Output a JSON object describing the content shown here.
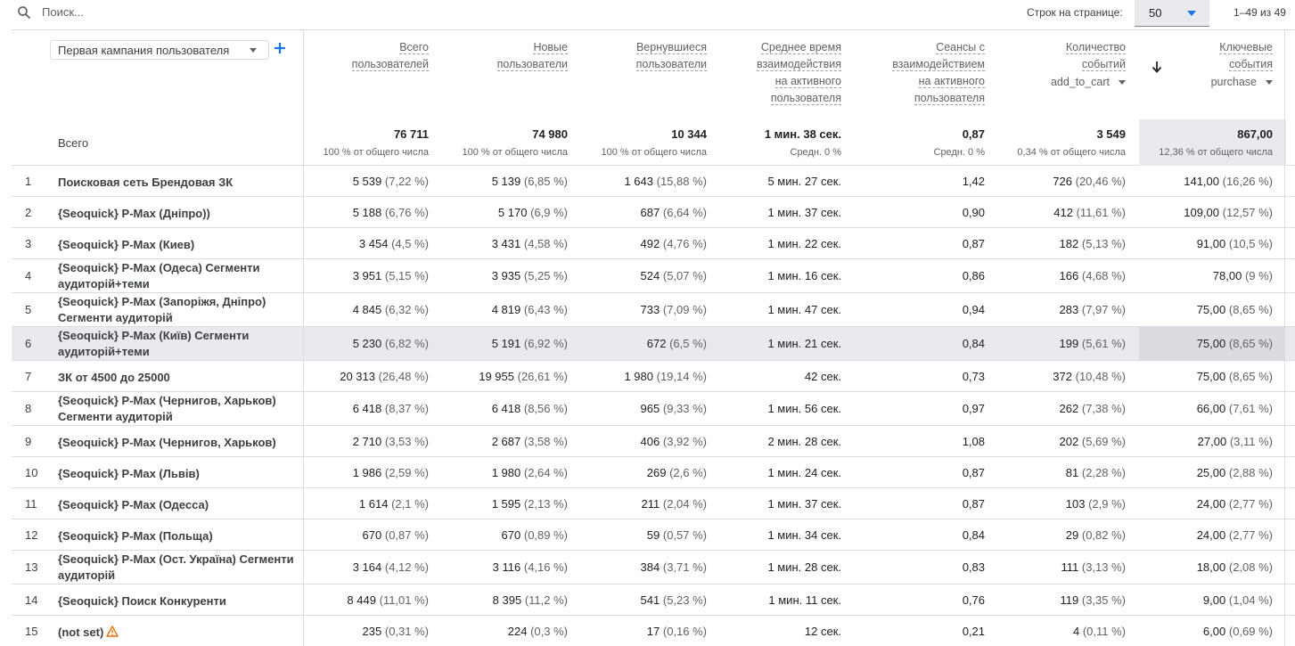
{
  "search": {
    "placeholder": "Поиск..."
  },
  "pagination": {
    "rows_label": "Строк на странице:",
    "rows_value": "50",
    "range": "1–49 из 49"
  },
  "dimension": {
    "label": "Первая кампания пользователя"
  },
  "total_label": "Всего",
  "columns": [
    {
      "lines": [
        "Всего",
        "пользователей"
      ],
      "total": "76 711",
      "pct": "100 % от общего числа"
    },
    {
      "lines": [
        "Новые",
        "пользователи"
      ],
      "total": "74 980",
      "pct": "100 % от общего числа"
    },
    {
      "lines": [
        "Вернувшиеся",
        "пользователи"
      ],
      "total": "10 344",
      "pct": "100 % от общего числа"
    },
    {
      "lines": [
        "Среднее время",
        "взаимодействия",
        "на активного",
        "пользователя"
      ],
      "total": "1 мин. 38 сек.",
      "pct": "Средн. 0 %"
    },
    {
      "lines": [
        "Сеансы с",
        "взаимодействием",
        "на активного",
        "пользователя"
      ],
      "total": "0,87",
      "pct": "Средн. 0 %"
    },
    {
      "lines": [
        "Количество",
        "событий"
      ],
      "event": "add_to_cart",
      "total": "3 549",
      "pct": "0,34 % от общего числа"
    },
    {
      "lines": [
        "Ключевые",
        "события"
      ],
      "event": "purchase",
      "total": "867,00",
      "pct": "12,36 % от общего числа"
    }
  ],
  "rows": [
    {
      "idx": "1",
      "name": "Поисковая сеть Брендовая ЗК",
      "c": [
        [
          "5 539",
          "(7,22 %)"
        ],
        [
          "5 139",
          "(6,85 %)"
        ],
        [
          "1 643",
          "(15,88 %)"
        ],
        [
          "5 мин. 27 сек.",
          ""
        ],
        [
          "1,42",
          ""
        ],
        [
          "726",
          "(20,46 %)"
        ],
        [
          "141,00",
          "(16,26 %)"
        ]
      ]
    },
    {
      "idx": "2",
      "name": "{Seoquick} P-Max (Дніпро))",
      "c": [
        [
          "5 188",
          "(6,76 %)"
        ],
        [
          "5 170",
          "(6,9 %)"
        ],
        [
          "687",
          "(6,64 %)"
        ],
        [
          "1 мин. 37 сек.",
          ""
        ],
        [
          "0,90",
          ""
        ],
        [
          "412",
          "(11,61 %)"
        ],
        [
          "109,00",
          "(12,57 %)"
        ]
      ]
    },
    {
      "idx": "3",
      "name": "{Seoquick} P-Max (Киев)",
      "c": [
        [
          "3 454",
          "(4,5 %)"
        ],
        [
          "3 431",
          "(4,58 %)"
        ],
        [
          "492",
          "(4,76 %)"
        ],
        [
          "1 мин. 22 сек.",
          ""
        ],
        [
          "0,87",
          ""
        ],
        [
          "182",
          "(5,13 %)"
        ],
        [
          "91,00",
          "(10,5 %)"
        ]
      ]
    },
    {
      "idx": "4",
      "name": "{Seoquick} P-Max (Одеса) Сегменти аудиторій+теми",
      "c": [
        [
          "3 951",
          "(5,15 %)"
        ],
        [
          "3 935",
          "(5,25 %)"
        ],
        [
          "524",
          "(5,07 %)"
        ],
        [
          "1 мин. 16 сек.",
          ""
        ],
        [
          "0,86",
          ""
        ],
        [
          "166",
          "(4,68 %)"
        ],
        [
          "78,00",
          "(9 %)"
        ]
      ]
    },
    {
      "idx": "5",
      "name": "{Seoquick} P-Max (Запоріжя, Дніпро) Сегменти аудиторій",
      "c": [
        [
          "4 845",
          "(6,32 %)"
        ],
        [
          "4 819",
          "(6,43 %)"
        ],
        [
          "733",
          "(7,09 %)"
        ],
        [
          "1 мин. 47 сек.",
          ""
        ],
        [
          "0,94",
          ""
        ],
        [
          "283",
          "(7,97 %)"
        ],
        [
          "75,00",
          "(8,65 %)"
        ]
      ]
    },
    {
      "idx": "6",
      "name": "{Seoquick} P-Max (Київ) Сегменти аудиторій+теми",
      "c": [
        [
          "5 230",
          "(6,82 %)"
        ],
        [
          "5 191",
          "(6,92 %)"
        ],
        [
          "672",
          "(6,5 %)"
        ],
        [
          "1 мин. 21 сек.",
          ""
        ],
        [
          "0,84",
          ""
        ],
        [
          "199",
          "(5,61 %)"
        ],
        [
          "75,00",
          "(8,65 %)"
        ]
      ]
    },
    {
      "idx": "7",
      "name": "ЗК от 4500 до 25000",
      "c": [
        [
          "20 313",
          "(26,48 %)"
        ],
        [
          "19 955",
          "(26,61 %)"
        ],
        [
          "1 980",
          "(19,14 %)"
        ],
        [
          "42 сек.",
          ""
        ],
        [
          "0,73",
          ""
        ],
        [
          "372",
          "(10,48 %)"
        ],
        [
          "75,00",
          "(8,65 %)"
        ]
      ]
    },
    {
      "idx": "8",
      "name": "{Seoquick} P-Max (Чернигов, Харьков) Сегменти аудиторій",
      "c": [
        [
          "6 418",
          "(8,37 %)"
        ],
        [
          "6 418",
          "(8,56 %)"
        ],
        [
          "965",
          "(9,33 %)"
        ],
        [
          "1 мин. 56 сек.",
          ""
        ],
        [
          "0,97",
          ""
        ],
        [
          "262",
          "(7,38 %)"
        ],
        [
          "66,00",
          "(7,61 %)"
        ]
      ]
    },
    {
      "idx": "9",
      "name": "{Seoquick} P-Max (Чернигов, Харьков)",
      "c": [
        [
          "2 710",
          "(3,53 %)"
        ],
        [
          "2 687",
          "(3,58 %)"
        ],
        [
          "406",
          "(3,92 %)"
        ],
        [
          "2 мин. 28 сек.",
          ""
        ],
        [
          "1,08",
          ""
        ],
        [
          "202",
          "(5,69 %)"
        ],
        [
          "27,00",
          "(3,11 %)"
        ]
      ]
    },
    {
      "idx": "10",
      "name": "{Seoquick} P-Max (Львів)",
      "c": [
        [
          "1 986",
          "(2,59 %)"
        ],
        [
          "1 980",
          "(2,64 %)"
        ],
        [
          "269",
          "(2,6 %)"
        ],
        [
          "1 мин. 24 сек.",
          ""
        ],
        [
          "0,87",
          ""
        ],
        [
          "81",
          "(2,28 %)"
        ],
        [
          "25,00",
          "(2,88 %)"
        ]
      ]
    },
    {
      "idx": "11",
      "name": "{Seoquick} P-Max (Одесса)",
      "c": [
        [
          "1 614",
          "(2,1 %)"
        ],
        [
          "1 595",
          "(2,13 %)"
        ],
        [
          "211",
          "(2,04 %)"
        ],
        [
          "1 мин. 37 сек.",
          ""
        ],
        [
          "0,87",
          ""
        ],
        [
          "103",
          "(2,9 %)"
        ],
        [
          "24,00",
          "(2,77 %)"
        ]
      ]
    },
    {
      "idx": "12",
      "name": "{Seoquick} P-Max (Польща)",
      "c": [
        [
          "670",
          "(0,87 %)"
        ],
        [
          "670",
          "(0,89 %)"
        ],
        [
          "59",
          "(0,57 %)"
        ],
        [
          "1 мин. 34 сек.",
          ""
        ],
        [
          "0,84",
          ""
        ],
        [
          "29",
          "(0,82 %)"
        ],
        [
          "24,00",
          "(2,77 %)"
        ]
      ]
    },
    {
      "idx": "13",
      "name": "{Seoquick} P-Max (Ост. Україна) Сегменти аудиторій",
      "c": [
        [
          "3 164",
          "(4,12 %)"
        ],
        [
          "3 116",
          "(4,16 %)"
        ],
        [
          "384",
          "(3,71 %)"
        ],
        [
          "1 мин. 28 сек.",
          ""
        ],
        [
          "0,83",
          ""
        ],
        [
          "111",
          "(3,13 %)"
        ],
        [
          "18,00",
          "(2,08 %)"
        ]
      ]
    },
    {
      "idx": "14",
      "name": "{Seoquick} Поиск Конкуренти",
      "c": [
        [
          "8 449",
          "(11,01 %)"
        ],
        [
          "8 395",
          "(11,2 %)"
        ],
        [
          "541",
          "(5,23 %)"
        ],
        [
          "1 мин. 11 сек.",
          ""
        ],
        [
          "0,76",
          ""
        ],
        [
          "119",
          "(3,35 %)"
        ],
        [
          "9,00",
          "(1,04 %)"
        ]
      ]
    },
    {
      "idx": "15",
      "name": "(not set)",
      "warn": true,
      "c": [
        [
          "235",
          "(0,31 %)"
        ],
        [
          "224",
          "(0,3 %)"
        ],
        [
          "17",
          "(0,16 %)"
        ],
        [
          "12 сек.",
          ""
        ],
        [
          "0,21",
          ""
        ],
        [
          "4",
          "(0,11 %)"
        ],
        [
          "6,00",
          "(0,69 %)"
        ]
      ]
    }
  ],
  "colors": {
    "accent": "#1a73e8",
    "border": "#dadce0",
    "highlight": "#e8eaed",
    "warning": "#e37400"
  }
}
